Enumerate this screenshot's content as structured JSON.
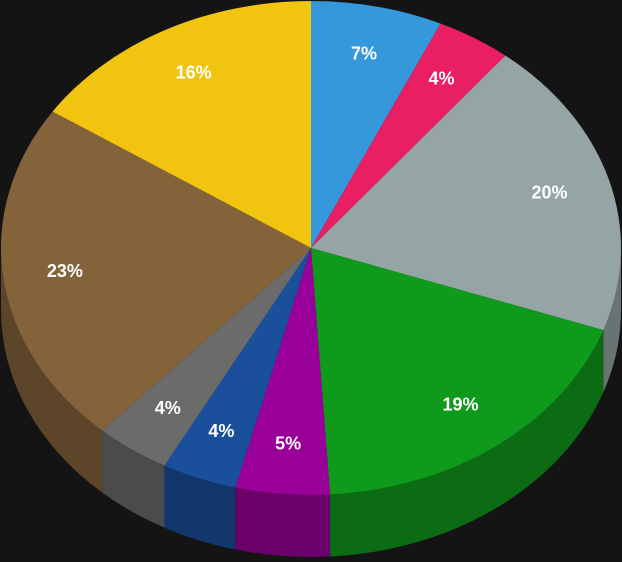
{
  "chart_data": {
    "type": "pie",
    "values": [
      7,
      4,
      20,
      19,
      5,
      4,
      4,
      23,
      16
    ],
    "value_labels": [
      "7%",
      "4%",
      "20%",
      "19%",
      "5%",
      "4%",
      "4%",
      "23%",
      "16%"
    ],
    "colors": [
      "#3498db",
      "#e91e63",
      "#95a5a6",
      "#0f9a1c",
      "#990099",
      "#1a4f9c",
      "#6b6b6b",
      "#85633a",
      "#f1c40f"
    ]
  }
}
